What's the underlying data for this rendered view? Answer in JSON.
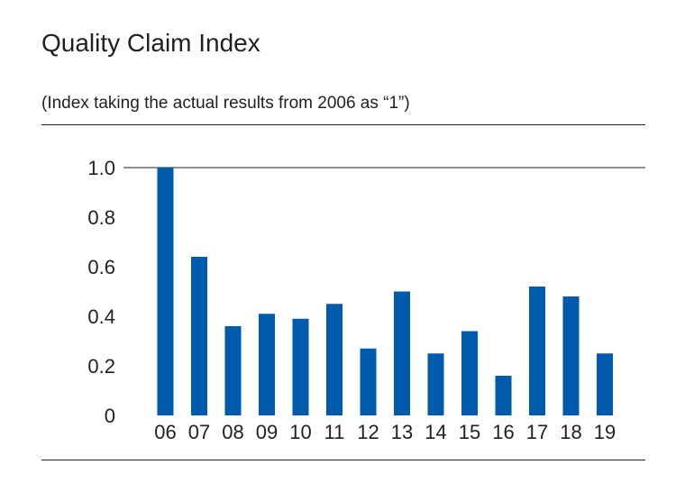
{
  "chart_data": {
    "type": "bar",
    "title": "Quality Claim Index",
    "subtitle": "(Index taking the actual results from 2006 as “1”)",
    "xlabel": "",
    "ylabel": "",
    "categories": [
      "06",
      "07",
      "08",
      "09",
      "10",
      "11",
      "12",
      "13",
      "14",
      "15",
      "16",
      "17",
      "18",
      "19"
    ],
    "values": [
      1.0,
      0.64,
      0.36,
      0.41,
      0.39,
      0.45,
      0.27,
      0.5,
      0.25,
      0.34,
      0.16,
      0.52,
      0.48,
      0.25
    ],
    "ylim": [
      0,
      1.0
    ],
    "yticks": [
      "0",
      "0.2",
      "0.4",
      "0.6",
      "0.8",
      "1.0"
    ],
    "bar_color": "#005bac",
    "grid": false,
    "legend": "none"
  }
}
